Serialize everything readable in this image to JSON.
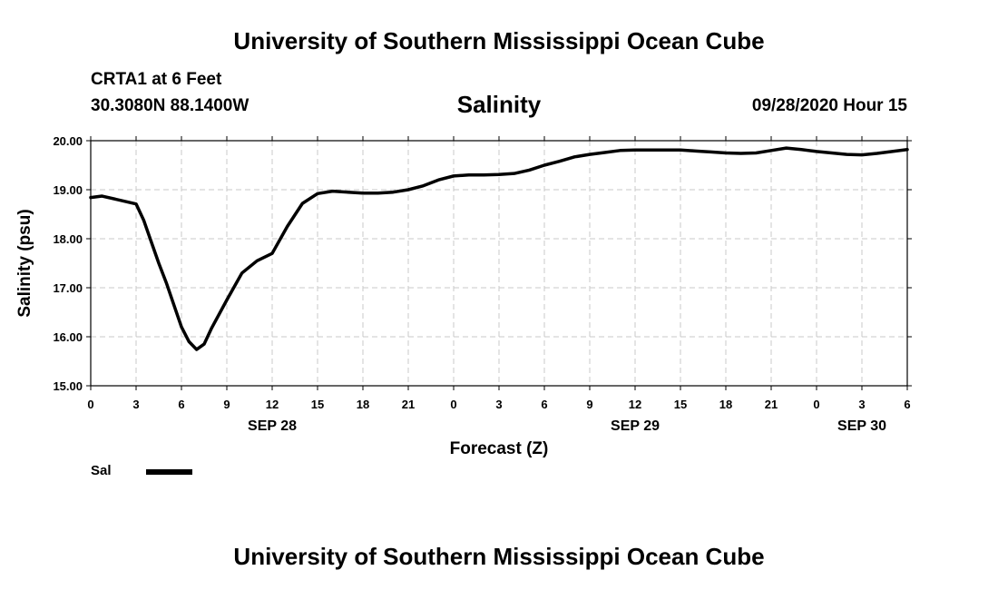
{
  "header": {
    "title": "University of Southern Mississippi Ocean Cube",
    "station": "CRTA1 at 6 Feet",
    "coords": "30.3080N 88.1400W",
    "variable": "Salinity",
    "datetime": "09/28/2020 Hour 15"
  },
  "footer": {
    "title": "University of Southern Mississippi Ocean Cube"
  },
  "legend": {
    "label": "Sal"
  },
  "chart_data": {
    "type": "line",
    "title": "Salinity",
    "xlabel": "Forecast (Z)",
    "ylabel": "Salinity (psu)",
    "x_hours_range": [
      0,
      54
    ],
    "ylim": [
      15,
      20
    ],
    "grid": true,
    "yticks": [
      "15.00",
      "16.00",
      "17.00",
      "18.00",
      "19.00",
      "20.00"
    ],
    "xtick_labels": [
      "0",
      "3",
      "6",
      "9",
      "12",
      "15",
      "18",
      "21",
      "0",
      "3",
      "6",
      "9",
      "12",
      "15",
      "18",
      "21",
      "0",
      "3",
      "6"
    ],
    "date_labels": [
      {
        "hour": 12,
        "label": "SEP 28"
      },
      {
        "hour": 36,
        "label": "SEP 29"
      },
      {
        "hour": 51,
        "label": "SEP 30"
      }
    ],
    "series": [
      {
        "name": "Sal",
        "color": "#000000",
        "x": [
          0,
          0.75,
          3,
          3.5,
          4.5,
          5,
          5.5,
          6,
          6.5,
          7,
          7.5,
          8,
          9,
          10,
          11,
          12,
          13,
          14,
          15,
          16,
          17,
          18,
          19,
          20,
          21,
          22,
          23,
          24,
          25,
          26,
          27,
          28,
          29,
          30,
          31,
          32,
          33,
          34,
          35,
          36,
          37,
          38,
          39,
          40,
          41,
          42,
          43,
          44,
          45,
          46,
          47,
          48,
          49,
          50,
          51,
          52,
          53,
          54
        ],
        "values": [
          18.84,
          18.87,
          18.71,
          18.38,
          17.5,
          17.1,
          16.65,
          16.2,
          15.9,
          15.74,
          15.85,
          16.18,
          16.75,
          17.3,
          17.55,
          17.7,
          18.25,
          18.72,
          18.92,
          18.97,
          18.95,
          18.93,
          18.93,
          18.95,
          19.0,
          19.08,
          19.2,
          19.28,
          19.3,
          19.3,
          19.31,
          19.33,
          19.4,
          19.5,
          19.58,
          19.67,
          19.72,
          19.76,
          19.8,
          19.81,
          19.81,
          19.81,
          19.81,
          19.79,
          19.77,
          19.75,
          19.74,
          19.75,
          19.8,
          19.85,
          19.82,
          19.78,
          19.75,
          19.72,
          19.71,
          19.74,
          19.78,
          19.82
        ]
      }
    ]
  }
}
